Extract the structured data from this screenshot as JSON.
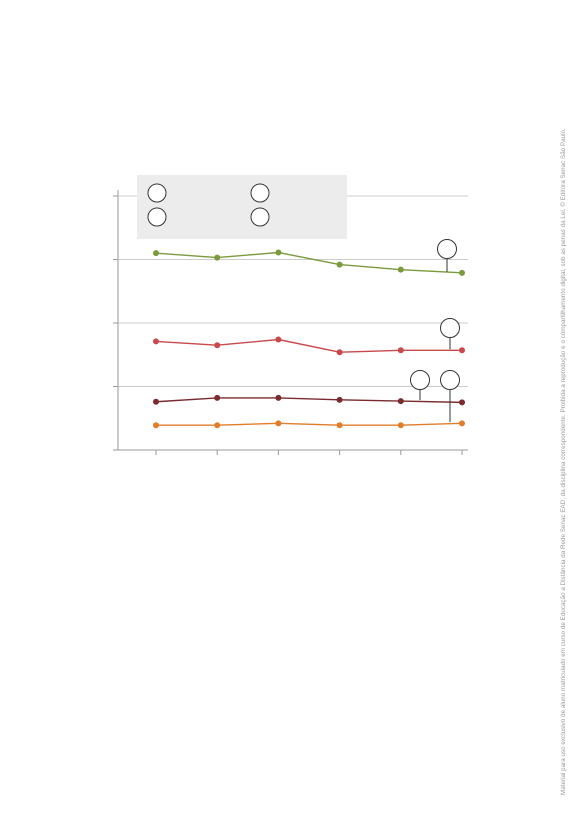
{
  "chart_data": {
    "type": "line",
    "title": "",
    "xlabel": "",
    "ylabel": "",
    "x": [
      1,
      2,
      3,
      4,
      5,
      6
    ],
    "ylim": [
      0,
      4
    ],
    "yticks": [
      0,
      1,
      2,
      3,
      4
    ],
    "grid": true,
    "legend": {
      "placement": "top-left",
      "markers": 4
    },
    "series": [
      {
        "color": "#7a9a3c",
        "values": [
          3.1,
          3.03,
          3.11,
          2.92,
          2.84,
          2.79
        ]
      },
      {
        "color": "#c9484b",
        "values": [
          1.71,
          1.65,
          1.74,
          1.54,
          1.57,
          1.57
        ]
      },
      {
        "color": "#7a2b2e",
        "values": [
          0.76,
          0.82,
          0.82,
          0.79,
          0.77,
          0.75
        ]
      },
      {
        "color": "#e07d2a",
        "values": [
          0.39,
          0.39,
          0.42,
          0.39,
          0.39,
          0.42
        ]
      }
    ],
    "callouts": [
      {
        "series": 0,
        "point": 5
      },
      {
        "series": 1,
        "point": 5
      },
      {
        "series": 2,
        "point": 4
      },
      {
        "series": 2,
        "point": 5
      }
    ]
  },
  "colors": {
    "axis": "#9a9a9a",
    "grid": "#cccccc",
    "legend_bg": "#ececec"
  },
  "side_note": "Material para uso exclusivo de aluno matriculado em curso de Educação a Distância da Rede Senac EAD, da disciplina correspondente. Proibida a reprodução e o compartilhamento digital, sob as penas da Lei. © Editora Senac São Paulo."
}
